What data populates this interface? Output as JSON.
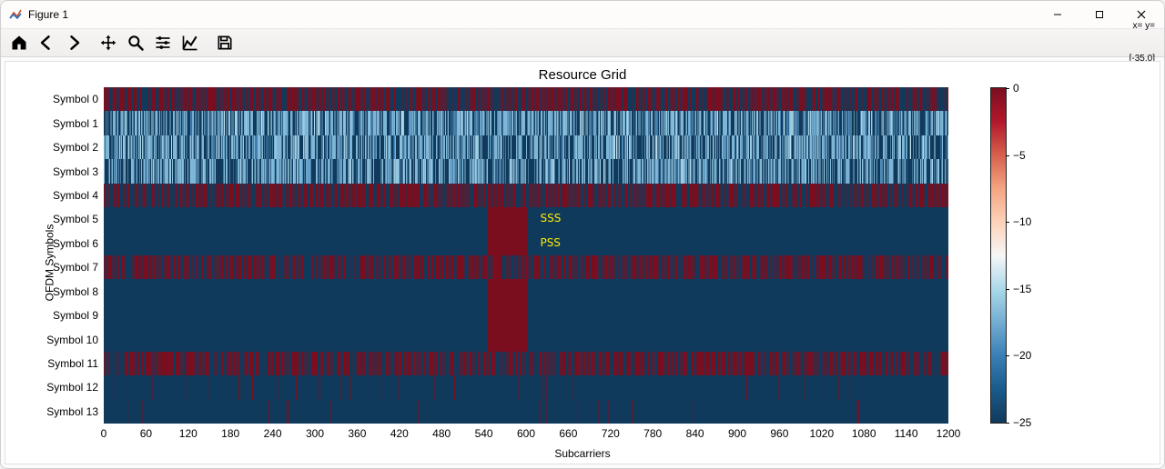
{
  "window": {
    "title": "Figure 1"
  },
  "toolbar": {
    "coord_line1": "x= y=",
    "coord_line2": "[-35.0]"
  },
  "chart": {
    "type": "heatmap",
    "title": "Resource Grid",
    "xlabel": "Subcarriers",
    "ylabel": "OFDM Symbols",
    "title_fontsize": 15,
    "label_fontsize": 12,
    "tick_fontsize": 12,
    "background_color": "#ffffff",
    "nrows": 14,
    "ncols": 1200,
    "yticklabels": [
      "Symbol 0",
      "Symbol 1",
      "Symbol 2",
      "Symbol 3",
      "Symbol 4",
      "Symbol 5",
      "Symbol 6",
      "Symbol 7",
      "Symbol 8",
      "Symbol 9",
      "Symbol 10",
      "Symbol 11",
      "Symbol 12",
      "Symbol 13"
    ],
    "xticks": [
      0,
      60,
      120,
      180,
      240,
      300,
      360,
      420,
      480,
      540,
      600,
      660,
      720,
      780,
      840,
      900,
      960,
      1020,
      1080,
      1140,
      1200
    ],
    "colormap": "RdBu_r",
    "colormap_stops": [
      [
        0.0,
        "#103a5c"
      ],
      [
        0.1,
        "#1c5a8b"
      ],
      [
        0.2,
        "#3a80b6"
      ],
      [
        0.3,
        "#74add1"
      ],
      [
        0.4,
        "#abd9e9"
      ],
      [
        0.5,
        "#f7f7f7"
      ],
      [
        0.6,
        "#fdd2b8"
      ],
      [
        0.7,
        "#f4a582"
      ],
      [
        0.8,
        "#d6604d"
      ],
      [
        0.9,
        "#b2182b"
      ],
      [
        1.0,
        "#7a0e1f"
      ]
    ],
    "vmin": -25,
    "vmax": 0,
    "cbar_ticks": [
      0,
      -5,
      -10,
      -15,
      -20,
      -25
    ],
    "row_pattern": {
      "bg_value": -25,
      "stripe_value": 0,
      "mid_value": -17,
      "sync_block": {
        "x_start": 545,
        "x_end": 600,
        "value": 0,
        "rows": [
          5,
          6,
          8,
          9,
          10
        ]
      },
      "stripe_density_by_row": [
        0.55,
        0.45,
        0.4,
        0.4,
        0.55,
        0.0,
        0.0,
        0.55,
        0.0,
        0.0,
        0.0,
        0.55,
        0.02,
        0.02
      ],
      "stripe_is_midblue_rows": [
        1,
        2,
        3
      ],
      "seed": 424242
    },
    "annotations": [
      {
        "text": "SSS",
        "row": 5,
        "x_sub": 620,
        "color": "#ffeb00"
      },
      {
        "text": "PSS",
        "row": 6,
        "x_sub": 620,
        "color": "#ffeb00"
      }
    ]
  }
}
